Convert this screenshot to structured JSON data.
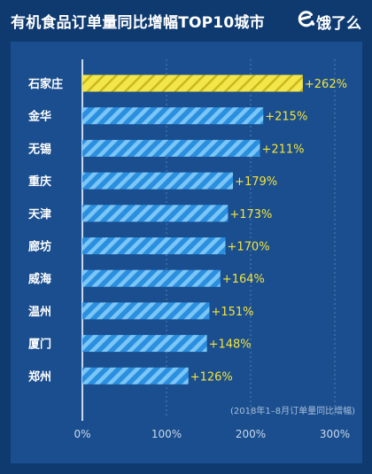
{
  "title": "有机食品订单量同比增幅TOP10城市",
  "brand": {
    "logo_text": "饿了么",
    "logo_icon": "eleme-logo-icon"
  },
  "colors": {
    "background": "#0e3a70",
    "panel": "#1a4e8e",
    "bar": "#2b8fe0",
    "bar_stripe": "#7cc6f6",
    "highlight_bar": "#f2e64a",
    "highlight_stripe": "#cbb81a",
    "value_label": "#f4e43c",
    "axis": "#c9d8ec"
  },
  "chart_data": {
    "type": "bar",
    "orientation": "horizontal",
    "categories": [
      "石家庄",
      "金华",
      "无锡",
      "重庆",
      "天津",
      "廊坊",
      "威海",
      "温州",
      "厦门",
      "郑州"
    ],
    "values": [
      262,
      215,
      211,
      179,
      173,
      170,
      164,
      151,
      148,
      126
    ],
    "value_labels": [
      "+262%",
      "+215%",
      "+211%",
      "+179%",
      "+173%",
      "+170%",
      "+164%",
      "+151%",
      "+148%",
      "+126%"
    ],
    "highlight_index": 0,
    "xlim": [
      0,
      300
    ],
    "xticks": [
      0,
      100,
      200,
      300
    ],
    "xtick_labels": [
      "0%",
      "100%",
      "200%",
      "300%"
    ],
    "grid": "vertical dashed",
    "annotation": "(2018年1–8月订单量同比增幅)"
  }
}
